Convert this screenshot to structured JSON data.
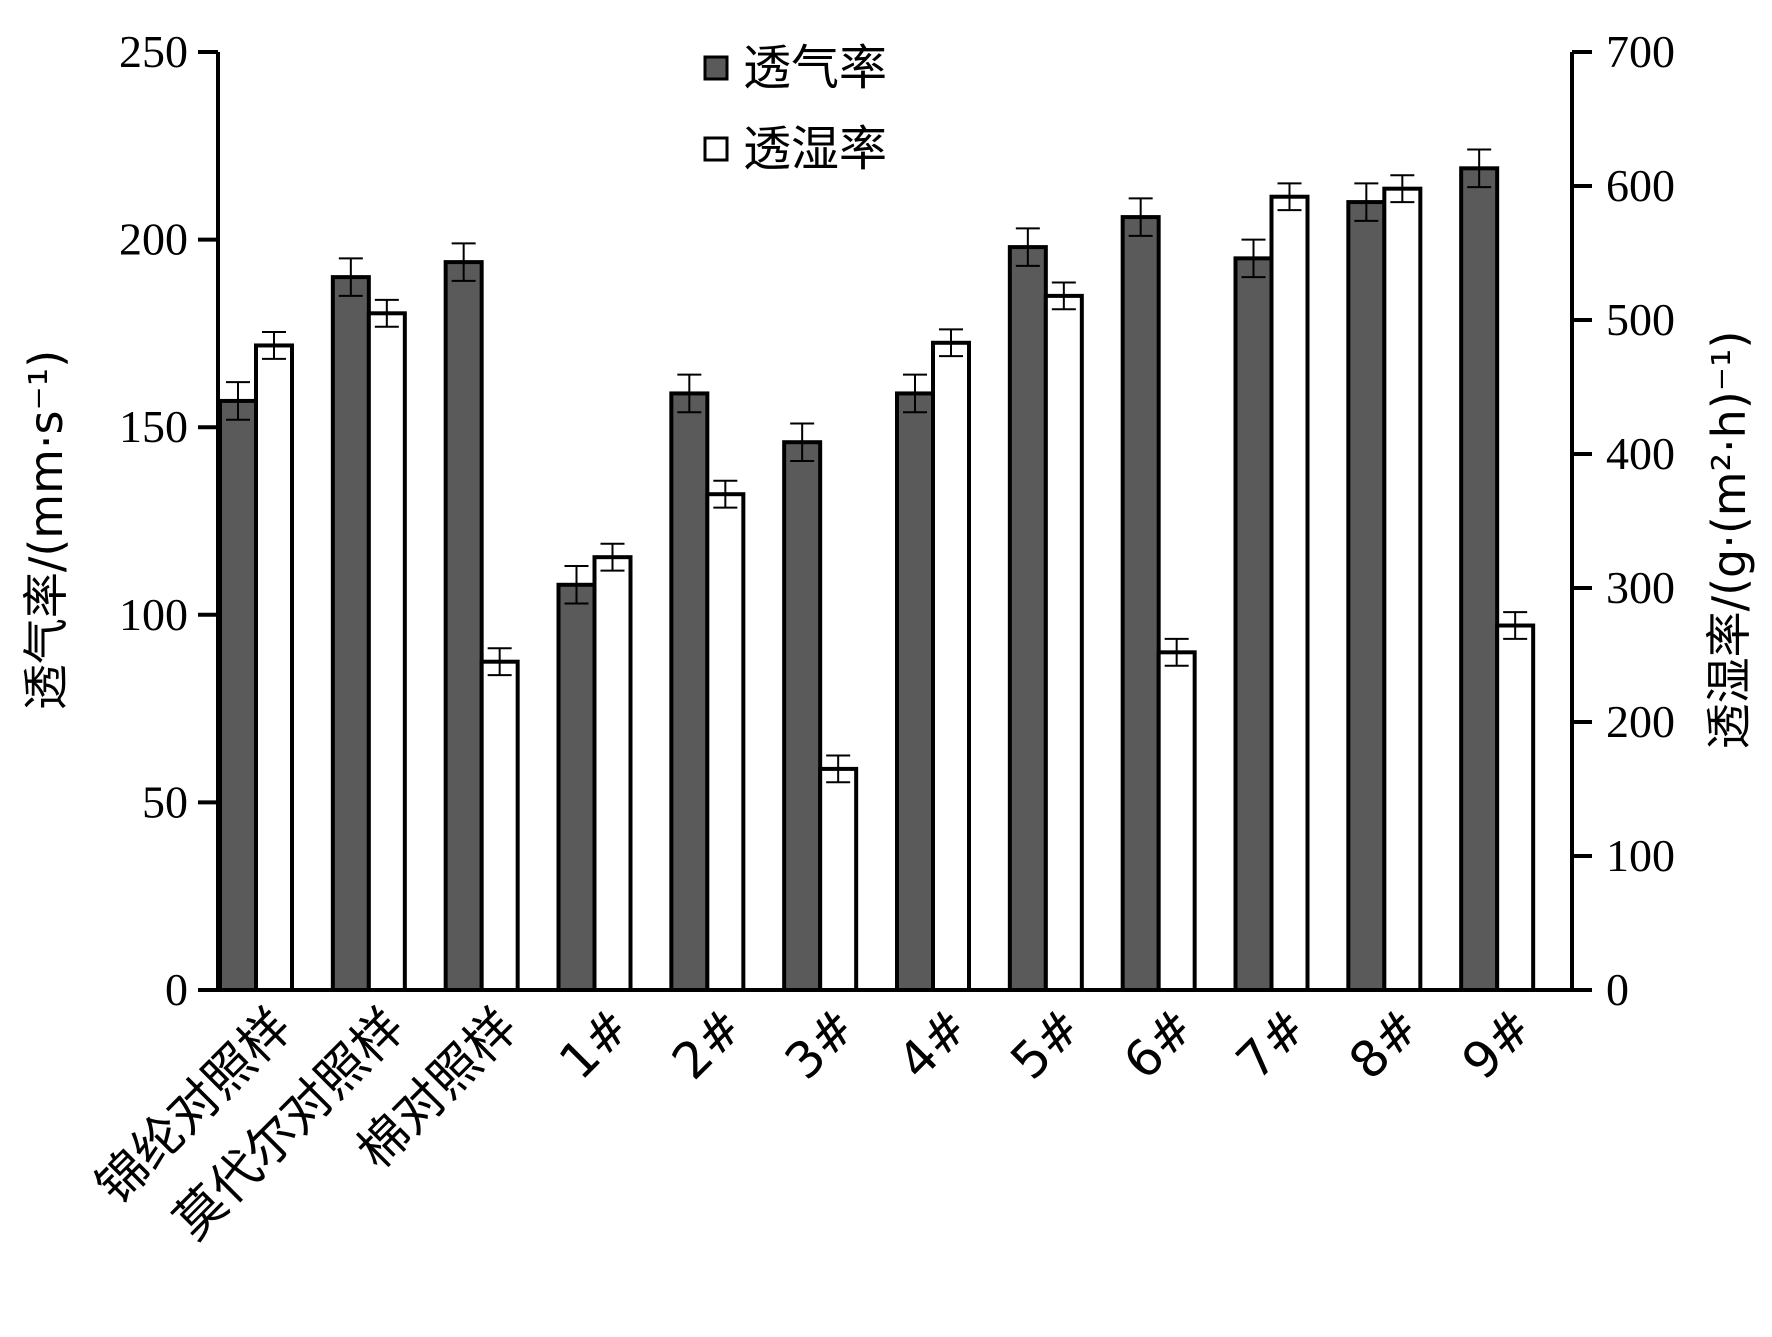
{
  "chart_data": {
    "type": "bar",
    "categories": [
      "锦纶对照样",
      "莫代尔对照样",
      "棉对照样",
      "1#",
      "2#",
      "3#",
      "4#",
      "5#",
      "6#",
      "7#",
      "8#",
      "9#"
    ],
    "series": [
      {
        "name": "透气率",
        "axis": "left",
        "color": "#5a5a5a",
        "values": [
          157,
          190,
          194,
          108,
          159,
          146,
          159,
          198,
          206,
          195,
          210,
          219
        ],
        "errors": [
          5,
          5,
          5,
          5,
          5,
          5,
          5,
          5,
          5,
          5,
          5,
          5
        ]
      },
      {
        "name": "透湿率",
        "axis": "right",
        "color": "#ffffff",
        "values": [
          481,
          505,
          245,
          323,
          370,
          165,
          483,
          518,
          252,
          592,
          598,
          272
        ],
        "errors": [
          10,
          10,
          10,
          10,
          10,
          10,
          10,
          10,
          10,
          10,
          10,
          10
        ]
      }
    ],
    "y_left": {
      "label": "透气率/(mm·s⁻¹)",
      "lim": [
        0,
        250
      ],
      "ticks": [
        "0",
        "50",
        "100",
        "150",
        "200",
        "250"
      ]
    },
    "y_right": {
      "label": "透湿率/(g·(m²·h)⁻¹)",
      "lim": [
        0,
        700
      ],
      "ticks": [
        "0",
        "100",
        "200",
        "300",
        "400",
        "500",
        "600",
        "700"
      ]
    },
    "legend": {
      "position": "top-center",
      "entries": [
        "透气率",
        "透湿率"
      ]
    },
    "grid": false
  }
}
